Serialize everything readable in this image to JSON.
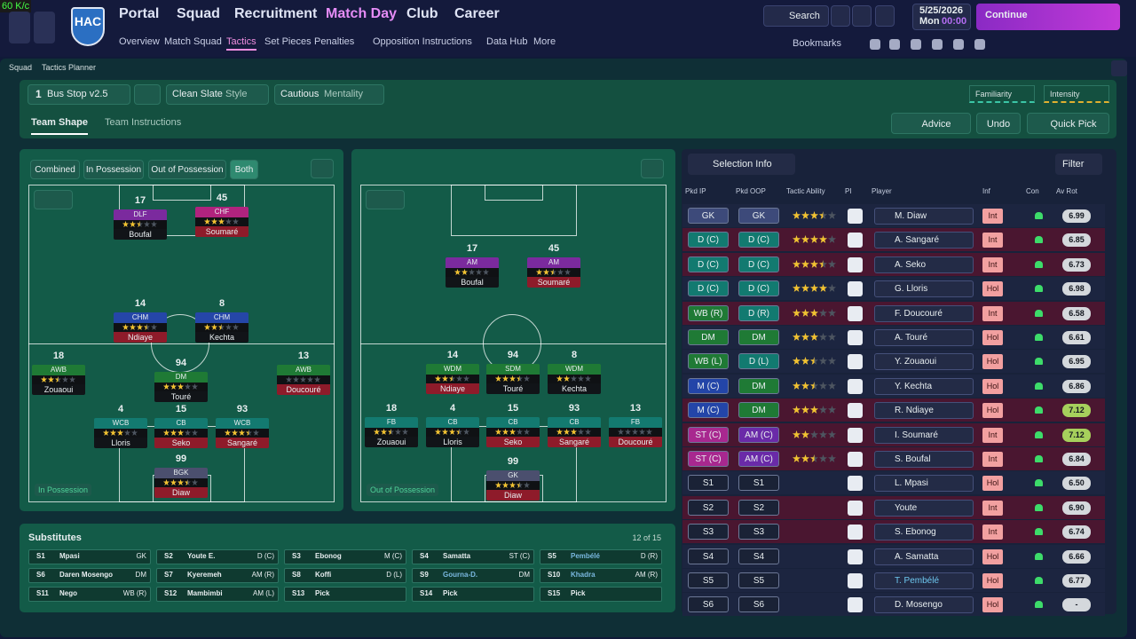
{
  "fps": "60 K/c",
  "nav": {
    "tabs": [
      "Portal",
      "Squad",
      "Recruitment",
      "Match Day",
      "Club",
      "Career"
    ],
    "subtabs": [
      "Overview",
      "Match Squad",
      "Tactics",
      "Set Pieces",
      "Penalties",
      "Opposition Instructions",
      "Data Hub",
      "More"
    ],
    "logo": "HAC",
    "search": "Search",
    "date": "5/25/2026",
    "day": "Mon",
    "time": "00:00",
    "continue": "Continue",
    "bookmarks": "Bookmarks"
  },
  "breadcrumb": [
    "Squad",
    "Tactics Planner"
  ],
  "toolbar": {
    "slot": "1",
    "tactic": "Bus Stop v2.5",
    "style": "Clean Slate",
    "style_label": "Style",
    "mentality": "Cautious",
    "mentality_label": "Mentality",
    "familiarity": "Familiarity",
    "intensity": "Intensity"
  },
  "tabs": [
    "Team Shape",
    "Team Instructions"
  ],
  "actions": [
    "Advice",
    "Undo",
    "Quick Pick"
  ],
  "filters": [
    "Combined",
    "In Possession",
    "Out of Possession",
    "Both"
  ],
  "pitches": [
    {
      "label": "In Possession",
      "players": [
        {
          "number": "17",
          "role": "DLF",
          "name": "Boufal",
          "stars": 2.5,
          "role_color": "#7b2a9e",
          "bar_color": "#111418"
        },
        {
          "number": "45",
          "role": "CHF",
          "name": "Soumaré",
          "stars": 3,
          "role_color": "#b0237e",
          "bar_color": "#8e1b2a"
        },
        {
          "number": "14",
          "role": "CHM",
          "name": "Ndiaye",
          "stars": 3.5,
          "role_color": "#2546a8",
          "bar_color": "#8e1b2a"
        },
        {
          "number": "8",
          "role": "CHM",
          "name": "Kechta",
          "stars": 2.5,
          "role_color": "#2546a8",
          "bar_color": "#111418"
        },
        {
          "number": "18",
          "role": "AWB",
          "name": "Zouaoui",
          "stars": 2.5,
          "role_color": "#1f7a35",
          "bar_color": "#111418"
        },
        {
          "number": "94",
          "role": "DM",
          "name": "Touré",
          "stars": 3,
          "role_color": "#1f7a35",
          "bar_color": "#111418"
        },
        {
          "number": "13",
          "role": "AWB",
          "name": "Doucouré",
          "stars": 0,
          "role_color": "#1f7a35",
          "bar_color": "#8e1b2a"
        },
        {
          "number": "4",
          "role": "WCB",
          "name": "Lloris",
          "stars": 3,
          "role_color": "#137a70",
          "bar_color": "#111418"
        },
        {
          "number": "15",
          "role": "CB",
          "name": "Seko",
          "stars": 3,
          "role_color": "#137a70",
          "bar_color": "#8e1b2a"
        },
        {
          "number": "93",
          "role": "WCB",
          "name": "Sangaré",
          "stars": 3.5,
          "role_color": "#137a70",
          "bar_color": "#8e1b2a"
        },
        {
          "number": "99",
          "role": "BGK",
          "name": "Diaw",
          "stars": 3.5,
          "role_color": "#4b4f6e",
          "bar_color": "#8e1b2a"
        }
      ]
    },
    {
      "label": "Out of Possession",
      "players": [
        {
          "number": "17",
          "role": "AM",
          "name": "Boufal",
          "stars": 2,
          "role_color": "#7b2a9e",
          "bar_color": "#111418"
        },
        {
          "number": "45",
          "role": "AM",
          "name": "Soumaré",
          "stars": 2.5,
          "role_color": "#7b2a9e",
          "bar_color": "#8e1b2a"
        },
        {
          "number": "14",
          "role": "WDM",
          "name": "Ndiaye",
          "stars": 2.5,
          "role_color": "#1f7a35",
          "bar_color": "#8e1b2a"
        },
        {
          "number": "94",
          "role": "SDM",
          "name": "Touré",
          "stars": 3.5,
          "role_color": "#1f7a35",
          "bar_color": "#111418"
        },
        {
          "number": "8",
          "role": "WDM",
          "name": "Kechta",
          "stars": 2,
          "role_color": "#1f7a35",
          "bar_color": "#111418"
        },
        {
          "number": "18",
          "role": "FB",
          "name": "Zouaoui",
          "stars": 2.5,
          "role_color": "#137a70",
          "bar_color": "#111418"
        },
        {
          "number": "4",
          "role": "CB",
          "name": "Lloris",
          "stars": 3.5,
          "role_color": "#137a70",
          "bar_color": "#111418"
        },
        {
          "number": "15",
          "role": "CB",
          "name": "Seko",
          "stars": 3,
          "role_color": "#137a70",
          "bar_color": "#8e1b2a"
        },
        {
          "number": "93",
          "role": "CB",
          "name": "Sangaré",
          "stars": 3,
          "role_color": "#137a70",
          "bar_color": "#8e1b2a"
        },
        {
          "number": "13",
          "role": "FB",
          "name": "Doucouré",
          "stars": 0,
          "role_color": "#137a70",
          "bar_color": "#8e1b2a"
        },
        {
          "number": "99",
          "role": "GK",
          "name": "Diaw",
          "stars": 3.5,
          "role_color": "#4b4f6e",
          "bar_color": "#8e1b2a"
        }
      ]
    }
  ],
  "selection": {
    "button": "Selection Info",
    "filter": "Filter",
    "headers": [
      "Pkd IP",
      "Pkd OOP",
      "Tactic Ability",
      "PI",
      "Player",
      "Inf",
      "Con",
      "Av Rot"
    ],
    "rows": [
      {
        "ip": "GK",
        "oop": "GK",
        "ability": 3.5,
        "player": "M. Diaw",
        "inf": "Int",
        "rating": "6.99",
        "row_color": "#1c2540",
        "ip_color": "#3d4a7a",
        "oop_color": "#3d4a7a"
      },
      {
        "ip": "D (C)",
        "oop": "D (C)",
        "ability": 4,
        "player": "A. Sangaré",
        "inf": "Int",
        "rating": "6.85",
        "row_color": "#4a1630",
        "ip_color": "#127a70",
        "oop_color": "#127a70"
      },
      {
        "ip": "D (C)",
        "oop": "D (C)",
        "ability": 3.5,
        "player": "A. Seko",
        "inf": "Int",
        "rating": "6.73",
        "row_color": "#4a1630",
        "ip_color": "#127a70",
        "oop_color": "#127a70"
      },
      {
        "ip": "D (C)",
        "oop": "D (C)",
        "ability": 4,
        "player": "G. Lloris",
        "inf": "Hol",
        "rating": "6.98",
        "row_color": "#1c2540",
        "ip_color": "#127a70",
        "oop_color": "#127a70"
      },
      {
        "ip": "WB (R)",
        "oop": "D (R)",
        "ability": 3,
        "player": "F. Doucouré",
        "inf": "Int",
        "rating": "6.58",
        "row_color": "#4a1630",
        "ip_color": "#1f7a35",
        "oop_color": "#127a70"
      },
      {
        "ip": "DM",
        "oop": "DM",
        "ability": 3,
        "player": "A. Touré",
        "inf": "Hol",
        "rating": "6.61",
        "row_color": "#1c2540",
        "ip_color": "#1f7a35",
        "oop_color": "#1f7a35"
      },
      {
        "ip": "WB (L)",
        "oop": "D (L)",
        "ability": 2.5,
        "player": "Y. Zouaoui",
        "inf": "Hol",
        "rating": "6.95",
        "row_color": "#1c2540",
        "ip_color": "#1f7a35",
        "oop_color": "#127a70"
      },
      {
        "ip": "M (C)",
        "oop": "DM",
        "ability": 2.5,
        "player": "Y. Kechta",
        "inf": "Hol",
        "rating": "6.86",
        "row_color": "#1c2540",
        "ip_color": "#2345a8",
        "oop_color": "#1f7a35"
      },
      {
        "ip": "M (C)",
        "oop": "DM",
        "ability": 3,
        "player": "R. Ndiaye",
        "inf": "Hol",
        "rating": "7.12",
        "row_color": "#4a1630",
        "ip_color": "#2345a8",
        "oop_color": "#1f7a35"
      },
      {
        "ip": "ST (C)",
        "oop": "AM (C)",
        "ability": 2,
        "player": "I. Soumaré",
        "inf": "Int",
        "rating": "7.12",
        "row_color": "#4a1630",
        "ip_color": "#a8288f",
        "oop_color": "#6a2aa8"
      },
      {
        "ip": "ST (C)",
        "oop": "AM (C)",
        "ability": 2.5,
        "player": "S. Boufal",
        "inf": "Int",
        "rating": "6.84",
        "row_color": "#4a1630",
        "ip_color": "#a8288f",
        "oop_color": "#6a2aa8"
      },
      {
        "ip": "S1",
        "oop": "S1",
        "ability": null,
        "player": "L. Mpasi",
        "inf": "Hol",
        "rating": "6.50",
        "row_color": "#1c2540",
        "ip_color": "#1a2236",
        "oop_color": "#1a2236"
      },
      {
        "ip": "S2",
        "oop": "S2",
        "ability": null,
        "player": "Youte",
        "inf": "Int",
        "rating": "6.90",
        "row_color": "#4a1630",
        "ip_color": "#1a2236",
        "oop_color": "#1a2236"
      },
      {
        "ip": "S3",
        "oop": "S3",
        "ability": null,
        "player": "S. Ebonog",
        "inf": "Int",
        "rating": "6.74",
        "row_color": "#4a1630",
        "ip_color": "#1a2236",
        "oop_color": "#1a2236"
      },
      {
        "ip": "S4",
        "oop": "S4",
        "ability": null,
        "player": "A. Samatta",
        "inf": "Hol",
        "rating": "6.66",
        "row_color": "#1c2540",
        "ip_color": "#1a2236",
        "oop_color": "#1a2236"
      },
      {
        "ip": "S5",
        "oop": "S5",
        "ability": null,
        "player": "T. Pembélé",
        "inf": "Hol",
        "rating": "6.77",
        "row_color": "#1c2540",
        "ip_color": "#1a2236",
        "oop_color": "#1a2236"
      },
      {
        "ip": "S6",
        "oop": "S6",
        "ability": null,
        "player": "D. Mosengo",
        "inf": "Hol",
        "rating": "-",
        "row_color": "#1c2540",
        "ip_color": "#1a2236",
        "oop_color": "#1a2236"
      }
    ]
  },
  "substitutes": {
    "title": "Substitutes",
    "count": "12 of 15",
    "slots": [
      {
        "slot": "S1",
        "name": "Mpasi",
        "pos": "GK"
      },
      {
        "slot": "S2",
        "name": "Youte E.",
        "pos": "D (C)"
      },
      {
        "slot": "S3",
        "name": "Ebonog",
        "pos": "M (C)"
      },
      {
        "slot": "S4",
        "name": "Samatta",
        "pos": "ST (C)"
      },
      {
        "slot": "S5",
        "name": "Pembélé",
        "pos": "D (R)"
      },
      {
        "slot": "S6",
        "name": "Daren Mosengo",
        "pos": "DM"
      },
      {
        "slot": "S7",
        "name": "Kyeremeh",
        "pos": "AM (R)"
      },
      {
        "slot": "S8",
        "name": "Koffi",
        "pos": "D (L)"
      },
      {
        "slot": "S9",
        "name": "Gourna-D.",
        "pos": "DM"
      },
      {
        "slot": "S10",
        "name": "Khadra",
        "pos": "AM (R)"
      },
      {
        "slot": "S11",
        "name": "Nego",
        "pos": "WB (R)"
      },
      {
        "slot": "S12",
        "name": "Mambimbi",
        "pos": "AM (L)"
      },
      {
        "slot": "S13",
        "name": "Pick",
        "pos": null
      },
      {
        "slot": "S14",
        "name": "Pick",
        "pos": null
      },
      {
        "slot": "S15",
        "name": "Pick",
        "pos": null
      }
    ]
  }
}
